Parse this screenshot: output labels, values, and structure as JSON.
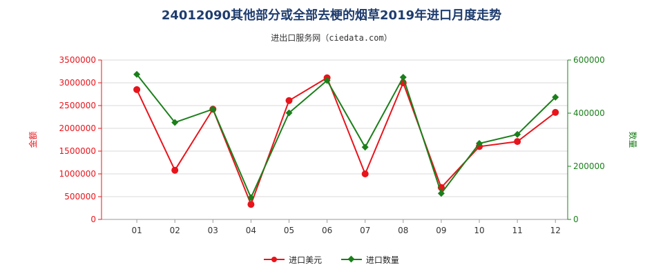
{
  "title": "24012090其他部分或全部去梗的烟草2019年进口月度走势",
  "subtitle": "进出口服务网（ciedata.com）",
  "chart_data": {
    "type": "line",
    "categories": [
      "01",
      "02",
      "03",
      "04",
      "05",
      "06",
      "07",
      "08",
      "09",
      "10",
      "11",
      "12"
    ],
    "left_axis": {
      "label": "金额",
      "ylim": [
        0,
        3500000
      ],
      "ticks": [
        "0",
        "500000",
        "1000000",
        "1500000",
        "2000000",
        "2500000",
        "3000000",
        "3500000"
      ],
      "color": "#e8141b"
    },
    "right_axis": {
      "label": "数量",
      "ylim": [
        0,
        600000
      ],
      "ticks": [
        "0",
        "200000",
        "400000",
        "600000"
      ],
      "color": "#1b7f1b"
    },
    "series": [
      {
        "name": "进口美元",
        "axis": "left",
        "color": "#e8141b",
        "marker": "circle",
        "values": [
          2850000,
          1080000,
          2420000,
          330000,
          2610000,
          3110000,
          1000000,
          3000000,
          700000,
          1600000,
          1710000,
          2350000
        ]
      },
      {
        "name": "进口数量",
        "axis": "right",
        "color": "#1b7f1b",
        "marker": "diamond",
        "values": [
          546000,
          365000,
          415000,
          82000,
          401000,
          523000,
          272000,
          535000,
          98000,
          286000,
          320000,
          460000
        ]
      }
    ],
    "grid": true,
    "legend_position": "bottom-center"
  }
}
